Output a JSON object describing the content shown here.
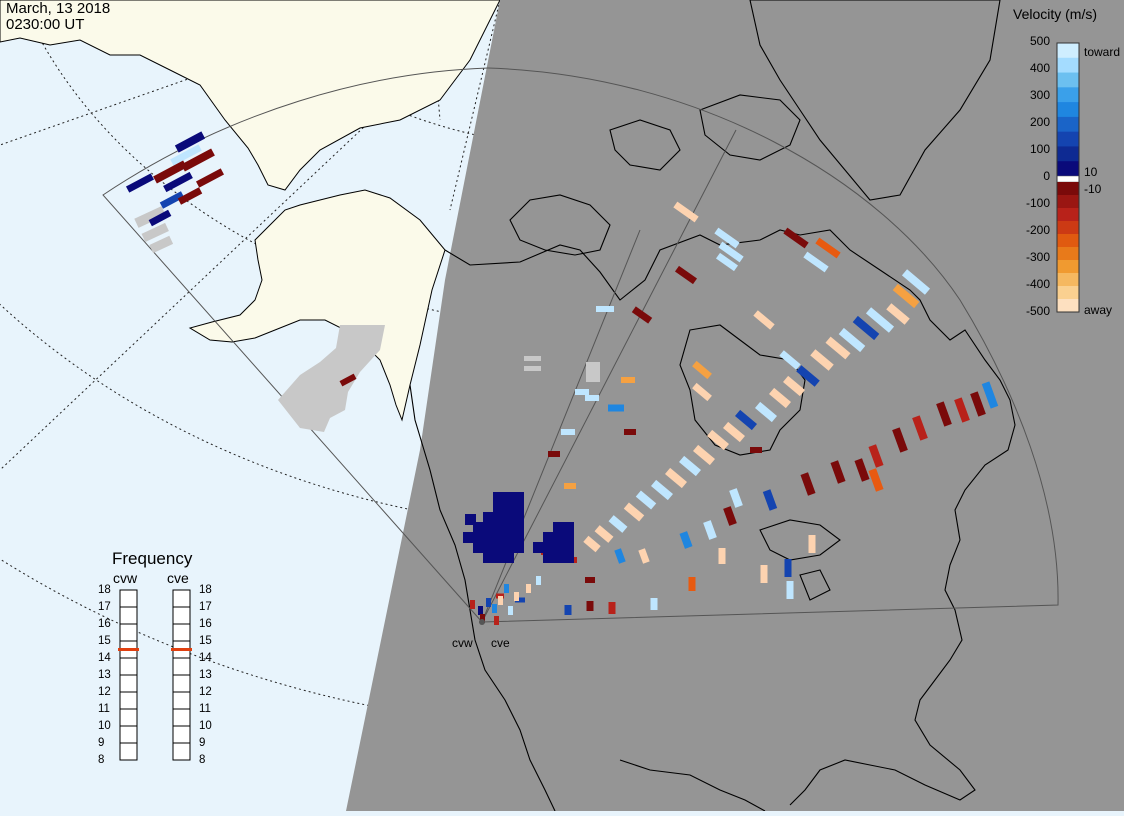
{
  "header": {
    "date": "March, 13 2018",
    "time": "0230:00 UT"
  },
  "colors": {
    "ocean": "#e8f4fc",
    "land_day": "#fbfaea",
    "night_shade": "#959595",
    "ground_scatter": "#c8c8c8",
    "frequency_marker": "#e04010"
  },
  "colorbar": {
    "title": "Velocity (m/s)",
    "ticks": [
      "500",
      "400",
      "300",
      "200",
      "100",
      "0",
      "-100",
      "-200",
      "-300",
      "-400",
      "-500"
    ],
    "toward_label": "toward",
    "away_label": "away",
    "pos_threshold": "10",
    "neg_threshold": "-10"
  },
  "frequency": {
    "title": "Frequency",
    "scale": [
      "18",
      "17",
      "16",
      "15",
      "14",
      "13",
      "12",
      "11",
      "10",
      "9",
      "8"
    ],
    "radars": [
      {
        "name": "cvw",
        "value": 15
      },
      {
        "name": "cve",
        "value": 15
      }
    ]
  },
  "radar_sites": [
    {
      "code": "cvw",
      "label": "cvw"
    },
    {
      "code": "cve",
      "label": "cve"
    }
  ]
}
